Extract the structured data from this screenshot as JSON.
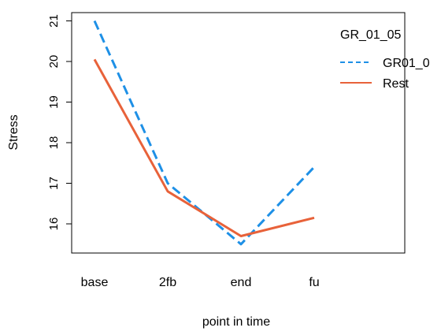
{
  "chart_data": {
    "type": "line",
    "categories": [
      "base",
      "2fb",
      "end",
      "fu"
    ],
    "series": [
      {
        "name": "GR01_0",
        "color": "#1E90E6",
        "style": "dashed",
        "values": [
          21.0,
          17.0,
          15.5,
          17.4
        ]
      },
      {
        "name": "Rest",
        "color": "#E8623A",
        "style": "solid",
        "values": [
          20.05,
          16.8,
          15.7,
          16.15
        ]
      }
    ],
    "xlabel": "point in time",
    "ylabel": "Stress",
    "yticks": [
      16,
      17,
      18,
      19,
      20,
      21
    ],
    "ylim": [
      15.5,
      21.0
    ],
    "legend_title": "GR_01_05",
    "legend_position": "top-right",
    "grid": false
  }
}
